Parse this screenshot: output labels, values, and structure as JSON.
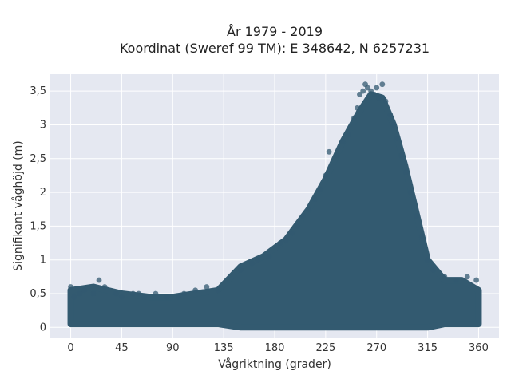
{
  "chart_data": {
    "type": "scatter",
    "title_line1": "År 1979 - 2019",
    "title_line2": "Koordinat (Sweref 99 TM): E 348642, N 6257231",
    "xlabel": "Vågriktning (grader)",
    "ylabel": "Signifikant våghöjd (m)",
    "xlim": [
      -18,
      378
    ],
    "ylim": [
      -0.15,
      3.75
    ],
    "x_ticks": [
      {
        "value": 0,
        "label": "0"
      },
      {
        "value": 45,
        "label": "45"
      },
      {
        "value": 90,
        "label": "90"
      },
      {
        "value": 135,
        "label": "135"
      },
      {
        "value": 180,
        "label": "180"
      },
      {
        "value": 225,
        "label": "225"
      },
      {
        "value": 270,
        "label": "270"
      },
      {
        "value": 315,
        "label": "315"
      },
      {
        "value": 360,
        "label": "360"
      }
    ],
    "y_ticks": [
      {
        "value": 0,
        "label": "0"
      },
      {
        "value": 0.5,
        "label": "0,5"
      },
      {
        "value": 1,
        "label": "1"
      },
      {
        "value": 1.5,
        "label": "1,5"
      },
      {
        "value": 2,
        "label": "2"
      },
      {
        "value": 2.5,
        "label": "2,5"
      },
      {
        "value": 3,
        "label": "3"
      },
      {
        "value": 3.5,
        "label": "3,5"
      }
    ],
    "grid": true,
    "marker_color": "#335a70",
    "plot_background": "#e5e8f1",
    "envelope": [
      {
        "x": 0,
        "ymax": 0.55
      },
      {
        "x": 20,
        "ymax": 0.6
      },
      {
        "x": 45,
        "ymax": 0.5
      },
      {
        "x": 70,
        "ymax": 0.45
      },
      {
        "x": 90,
        "ymax": 0.45
      },
      {
        "x": 110,
        "ymax": 0.5
      },
      {
        "x": 130,
        "ymax": 0.55
      },
      {
        "x": 150,
        "ymax": 0.9
      },
      {
        "x": 170,
        "ymax": 1.05
      },
      {
        "x": 190,
        "ymax": 1.3
      },
      {
        "x": 210,
        "ymax": 1.75
      },
      {
        "x": 225,
        "ymax": 2.2
      },
      {
        "x": 240,
        "ymax": 2.75
      },
      {
        "x": 255,
        "ymax": 3.2
      },
      {
        "x": 265,
        "ymax": 3.45
      },
      {
        "x": 275,
        "ymax": 3.4
      },
      {
        "x": 285,
        "ymax": 3.0
      },
      {
        "x": 295,
        "ymax": 2.4
      },
      {
        "x": 305,
        "ymax": 1.7
      },
      {
        "x": 315,
        "ymax": 1.0
      },
      {
        "x": 330,
        "ymax": 0.7
      },
      {
        "x": 345,
        "ymax": 0.7
      },
      {
        "x": 360,
        "ymax": 0.55
      }
    ],
    "points": [
      [
        0,
        0.6
      ],
      [
        3,
        0.45
      ],
      [
        8,
        0.5
      ],
      [
        12,
        0.55
      ],
      [
        20,
        0.5
      ],
      [
        25,
        0.7
      ],
      [
        30,
        0.6
      ],
      [
        40,
        0.5
      ],
      [
        45,
        0.45
      ],
      [
        55,
        0.5
      ],
      [
        60,
        0.5
      ],
      [
        65,
        0.45
      ],
      [
        75,
        0.5
      ],
      [
        85,
        0.45
      ],
      [
        95,
        0.45
      ],
      [
        100,
        0.5
      ],
      [
        110,
        0.55
      ],
      [
        120,
        0.6
      ],
      [
        130,
        0.55
      ],
      [
        150,
        0.85
      ],
      [
        160,
        0.95
      ],
      [
        165,
        1.0
      ],
      [
        175,
        1.05
      ],
      [
        185,
        1.25
      ],
      [
        190,
        1.3
      ],
      [
        195,
        1.4
      ],
      [
        200,
        1.5
      ],
      [
        205,
        1.65
      ],
      [
        210,
        1.75
      ],
      [
        215,
        1.9
      ],
      [
        220,
        2.05
      ],
      [
        225,
        2.25
      ],
      [
        228,
        2.6
      ],
      [
        235,
        2.55
      ],
      [
        240,
        2.75
      ],
      [
        245,
        2.85
      ],
      [
        250,
        3.1
      ],
      [
        253,
        3.25
      ],
      [
        255,
        3.45
      ],
      [
        258,
        3.5
      ],
      [
        260,
        3.6
      ],
      [
        262,
        3.55
      ],
      [
        265,
        3.5
      ],
      [
        268,
        3.45
      ],
      [
        270,
        3.55
      ],
      [
        272,
        3.4
      ],
      [
        275,
        3.6
      ],
      [
        278,
        3.35
      ],
      [
        282,
        3.15
      ],
      [
        285,
        3.0
      ],
      [
        288,
        2.8
      ],
      [
        292,
        2.55
      ],
      [
        296,
        2.3
      ],
      [
        300,
        2.0
      ],
      [
        305,
        1.65
      ],
      [
        310,
        1.35
      ],
      [
        315,
        1.0
      ],
      [
        320,
        0.85
      ],
      [
        330,
        0.75
      ],
      [
        340,
        0.7
      ],
      [
        350,
        0.75
      ],
      [
        358,
        0.7
      ]
    ]
  }
}
